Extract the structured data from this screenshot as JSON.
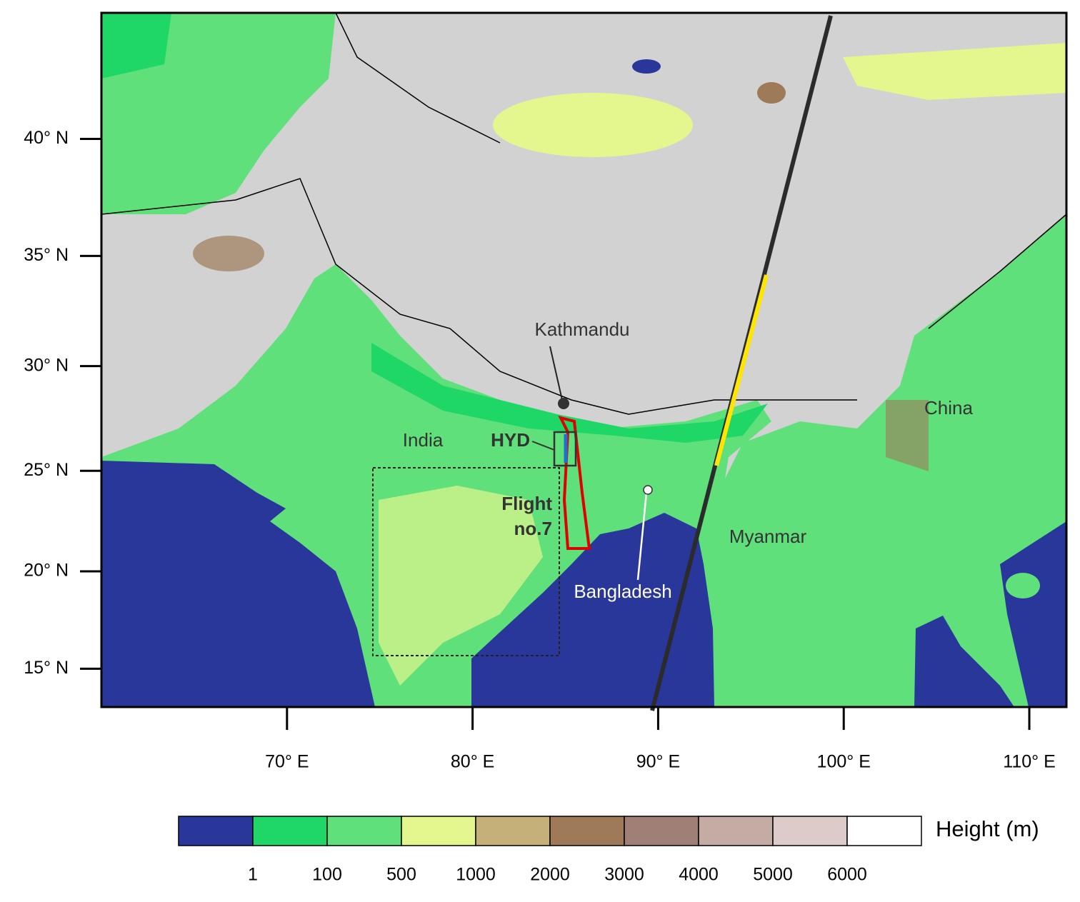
{
  "map": {
    "xlim": [
      60,
      112
    ],
    "ylim": [
      13,
      45
    ],
    "xticks": [
      {
        "value": 70,
        "label": "70° E"
      },
      {
        "value": 80,
        "label": "80° E"
      },
      {
        "value": 90,
        "label": "90° E"
      },
      {
        "value": 100,
        "label": "100° E"
      },
      {
        "value": 110,
        "label": "110° E"
      }
    ],
    "yticks": [
      {
        "value": 15,
        "label": "15° N"
      },
      {
        "value": 20,
        "label": "20° N"
      },
      {
        "value": 25,
        "label": "25° N"
      },
      {
        "value": 30,
        "label": "30° N"
      },
      {
        "value": 35,
        "label": "35° N"
      },
      {
        "value": 40,
        "label": "40° N"
      }
    ],
    "annotations": {
      "kathmandu": "Kathmandu",
      "india": "India",
      "hyd": "HYD",
      "flight_line1": "Flight",
      "flight_line2": "no.7",
      "bangladesh": "Bangladesh",
      "myanmar": "Myanmar",
      "china": "China"
    }
  },
  "colorbar": {
    "title": "Height (m)",
    "levels": [
      1,
      100,
      500,
      1000,
      2000,
      3000,
      4000,
      5000,
      6000
    ],
    "colors": [
      "#29369a",
      "#1fd766",
      "#5fe07a",
      "#e3f78e",
      "#c5b07a",
      "#9e7a58",
      "#a07f76",
      "#c4aca5",
      "#dccbc8",
      "#ffffff"
    ]
  }
}
